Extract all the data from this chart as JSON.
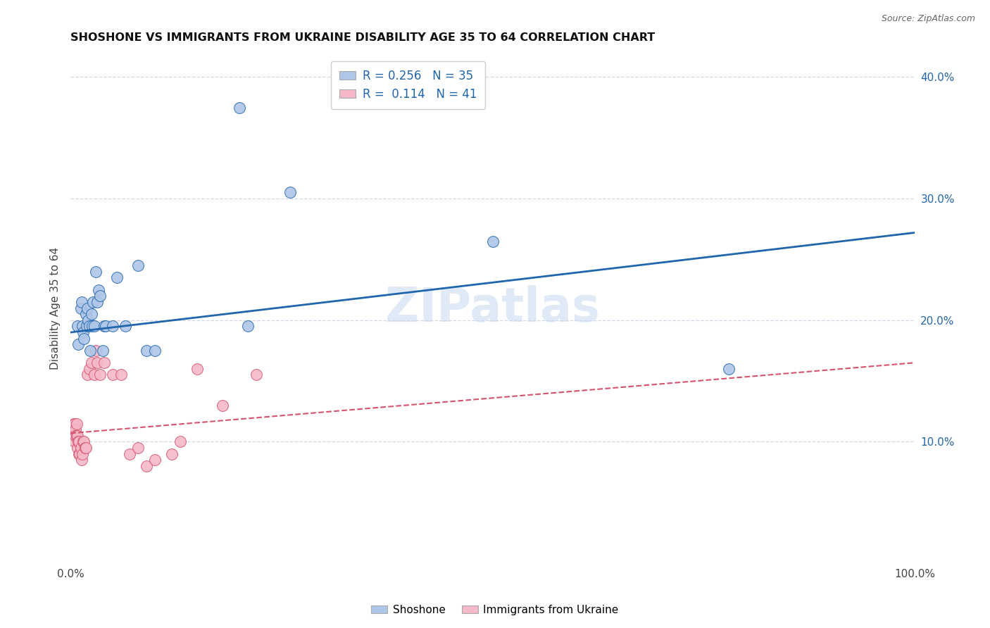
{
  "title": "SHOSHONE VS IMMIGRANTS FROM UKRAINE DISABILITY AGE 35 TO 64 CORRELATION CHART",
  "source": "Source: ZipAtlas.com",
  "xlabel": "",
  "ylabel": "Disability Age 35 to 64",
  "xlim": [
    0,
    1.0
  ],
  "ylim": [
    0,
    0.42
  ],
  "xticks": [
    0.0,
    0.1,
    0.2,
    0.3,
    0.4,
    0.5,
    0.6,
    0.7,
    0.8,
    0.9,
    1.0
  ],
  "xticklabels": [
    "0.0%",
    "",
    "",
    "",
    "",
    "",
    "",
    "",
    "",
    "",
    "100.0%"
  ],
  "yticks_right": [
    0.1,
    0.2,
    0.3,
    0.4
  ],
  "ytick_right_labels": [
    "10.0%",
    "20.0%",
    "30.0%",
    "40.0%"
  ],
  "shoshone_color": "#aec6e8",
  "ukraine_color": "#f4b8c8",
  "shoshone_line_color": "#2166ac",
  "ukraine_line_color": "#d6536d",
  "watermark_text": "ZIPatlas",
  "shoshone_x": [
    0.008,
    0.009,
    0.012,
    0.013,
    0.014,
    0.015,
    0.016,
    0.018,
    0.019,
    0.02,
    0.021,
    0.022,
    0.023,
    0.025,
    0.026,
    0.027,
    0.028,
    0.03,
    0.032,
    0.033,
    0.035,
    0.038,
    0.04,
    0.042,
    0.05,
    0.055,
    0.065,
    0.08,
    0.09,
    0.1,
    0.2,
    0.21,
    0.26,
    0.5,
    0.78
  ],
  "shoshone_y": [
    0.195,
    0.18,
    0.21,
    0.215,
    0.195,
    0.19,
    0.185,
    0.205,
    0.195,
    0.21,
    0.2,
    0.195,
    0.175,
    0.205,
    0.195,
    0.215,
    0.195,
    0.24,
    0.215,
    0.225,
    0.22,
    0.175,
    0.195,
    0.195,
    0.195,
    0.235,
    0.195,
    0.245,
    0.175,
    0.175,
    0.375,
    0.195,
    0.305,
    0.265,
    0.16
  ],
  "ukraine_x": [
    0.004,
    0.004,
    0.005,
    0.005,
    0.005,
    0.006,
    0.006,
    0.007,
    0.007,
    0.008,
    0.008,
    0.009,
    0.01,
    0.01,
    0.011,
    0.012,
    0.013,
    0.014,
    0.015,
    0.016,
    0.017,
    0.018,
    0.02,
    0.022,
    0.025,
    0.028,
    0.03,
    0.032,
    0.035,
    0.04,
    0.05,
    0.06,
    0.07,
    0.08,
    0.09,
    0.1,
    0.12,
    0.13,
    0.15,
    0.18,
    0.22
  ],
  "ukraine_y": [
    0.115,
    0.11,
    0.115,
    0.105,
    0.1,
    0.11,
    0.105,
    0.115,
    0.105,
    0.105,
    0.095,
    0.1,
    0.1,
    0.09,
    0.09,
    0.095,
    0.085,
    0.09,
    0.1,
    0.1,
    0.095,
    0.095,
    0.155,
    0.16,
    0.165,
    0.155,
    0.175,
    0.165,
    0.155,
    0.165,
    0.155,
    0.155,
    0.09,
    0.095,
    0.08,
    0.085,
    0.09,
    0.1,
    0.16,
    0.13,
    0.155
  ],
  "background_color": "#ffffff",
  "grid_color": "#d0d8e8"
}
